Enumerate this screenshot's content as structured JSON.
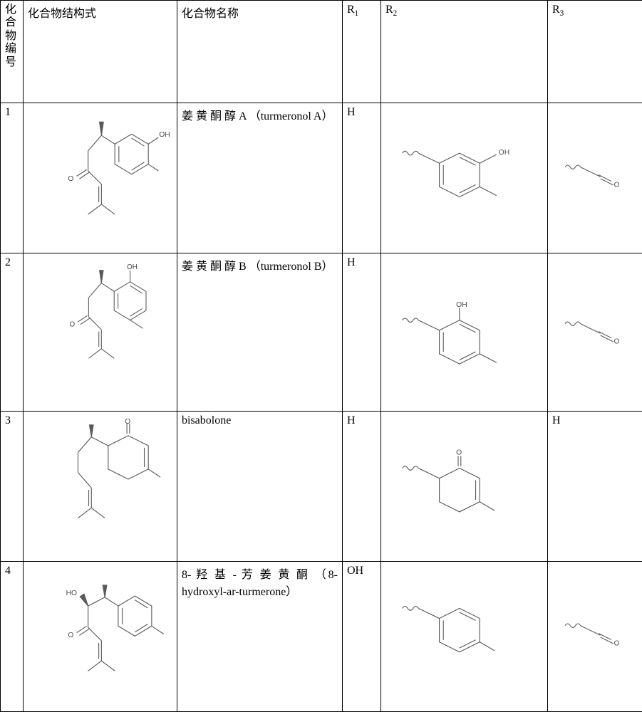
{
  "headers": {
    "col1": "化合物编号",
    "col2": "化合物结构式",
    "col3": "化合物名称",
    "col4_prefix": "R",
    "col4_sub": "1",
    "col5_prefix": "R",
    "col5_sub": "2",
    "col6_prefix": "R",
    "col6_sub": "3"
  },
  "rows": [
    {
      "num": "1",
      "name_zh_spread": "姜 黄 酮 醇 A",
      "name_en": "（turmeronol A）",
      "r1": "H",
      "r3_type": "ketone"
    },
    {
      "num": "2",
      "name_zh_spread": "姜 黄 酮 醇 B",
      "name_en": "（turmeronol B）",
      "r1": "H",
      "r3_type": "ketone"
    },
    {
      "num": "3",
      "name_zh": "bisabolone",
      "name_en": "",
      "r1": "H",
      "r3_type": "H"
    },
    {
      "num": "4",
      "name_zh_spread": "8- 羟 基 - 芳 姜 黄 酮",
      "name_en": "（8-hydroxyl-ar-turmerone）",
      "r1": "OH",
      "r3_type": "ketone"
    }
  ],
  "style": {
    "stroke": "#5a5a5a",
    "stroke_width": 1.2,
    "text_fill": "#4a4a4a",
    "mol_fontsize": 11
  }
}
